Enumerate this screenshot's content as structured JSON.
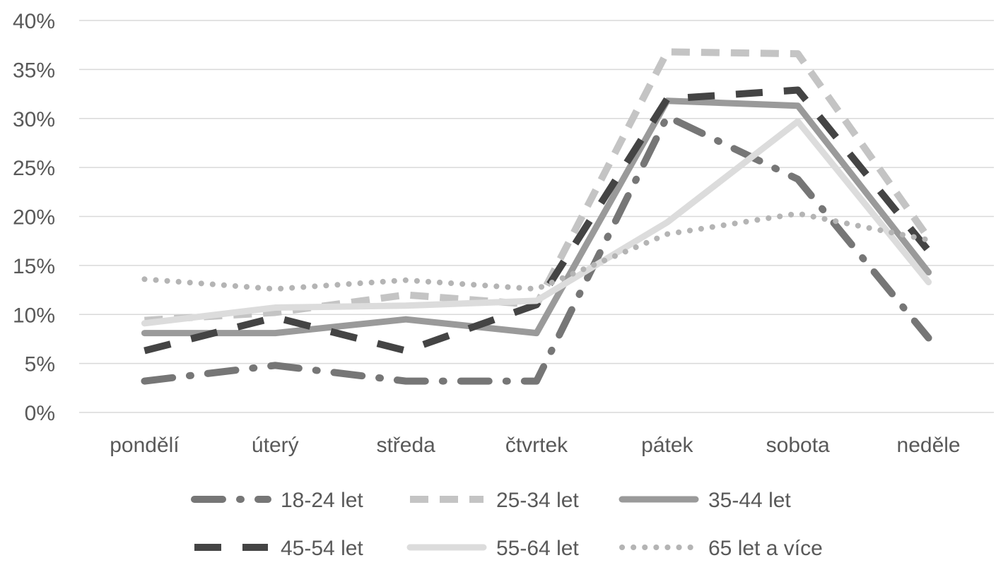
{
  "chart_data": {
    "type": "line",
    "title": "",
    "xlabel": "",
    "ylabel": "",
    "categories": [
      "pondělí",
      "úterý",
      "středa",
      "čtvrtek",
      "pátek",
      "sobota",
      "neděle"
    ],
    "ylim": [
      0,
      40
    ],
    "yticks": [
      "0%",
      "5%",
      "10%",
      "15%",
      "20%",
      "25%",
      "30%",
      "35%",
      "40%"
    ],
    "grid": true,
    "legend_position": "bottom",
    "series": [
      {
        "name": "18-24 let",
        "values": [
          3.2,
          4.8,
          3.2,
          3.2,
          30.2,
          23.8,
          7.6
        ],
        "color": "#767676",
        "style": "dash-dot"
      },
      {
        "name": "25-34 let",
        "values": [
          9.4,
          10.2,
          12.0,
          11.0,
          36.8,
          36.6,
          17.8
        ],
        "color": "#c4c4c4",
        "style": "dashed"
      },
      {
        "name": "35-44 let",
        "values": [
          8.1,
          8.1,
          9.5,
          8.1,
          31.8,
          31.3,
          14.3
        ],
        "color": "#9a9a9a",
        "style": "solid"
      },
      {
        "name": "45-54 let",
        "values": [
          6.3,
          9.7,
          6.3,
          11.0,
          32.0,
          32.9,
          16.5
        ],
        "color": "#444444",
        "style": "long-dash"
      },
      {
        "name": "55-64 let",
        "values": [
          9.1,
          10.7,
          10.9,
          11.4,
          19.4,
          29.7,
          13.3
        ],
        "color": "#dcdcdc",
        "style": "solid"
      },
      {
        "name": "65 let a více",
        "values": [
          13.6,
          12.6,
          13.5,
          12.6,
          18.2,
          20.3,
          17.6
        ],
        "color": "#b4b4b4",
        "style": "dotted"
      }
    ]
  }
}
